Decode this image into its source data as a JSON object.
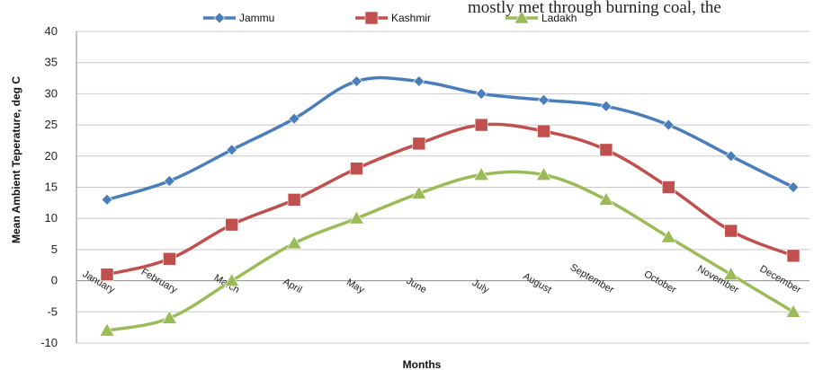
{
  "page_text": {
    "top_fragment": "mostly met through burning coal, the"
  },
  "chart_data": {
    "type": "line",
    "title": "",
    "xlabel": "Months",
    "ylabel": "Mean Ambient Teperature, deg C",
    "ylim": [
      -10,
      40
    ],
    "yticks": [
      -10,
      -5,
      0,
      5,
      10,
      15,
      20,
      25,
      30,
      35,
      40
    ],
    "grid": true,
    "legend_position": "top",
    "categories": [
      "January",
      "February",
      "March",
      "April",
      "May",
      "June",
      "July",
      "August",
      "September",
      "October",
      "November",
      "December"
    ],
    "series": [
      {
        "name": "Jammu",
        "color": "#4a7ebb",
        "marker": "diamond",
        "values": [
          13,
          16,
          21,
          26,
          32,
          32,
          30,
          29,
          28,
          25,
          20,
          15
        ]
      },
      {
        "name": "Kashmir",
        "color": "#c0504d",
        "marker": "square",
        "values": [
          1,
          3.5,
          9,
          13,
          18,
          22,
          25,
          24,
          21,
          15,
          8,
          4
        ]
      },
      {
        "name": "Ladakh",
        "color": "#9bbb59",
        "marker": "triangle",
        "values": [
          -8,
          -6,
          0,
          6,
          10,
          14,
          17,
          17,
          13,
          7,
          1,
          -5
        ]
      }
    ]
  }
}
